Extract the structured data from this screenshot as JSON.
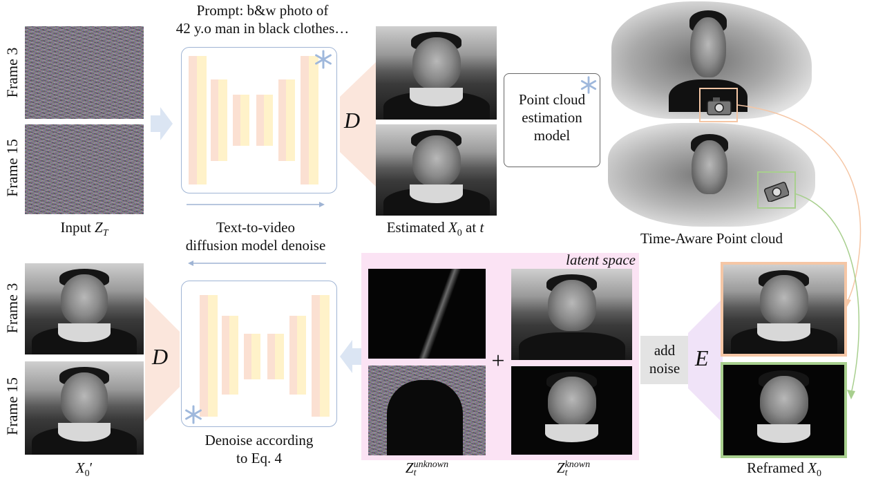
{
  "top": {
    "prompt_line1": "Prompt: b&w photo of",
    "prompt_line2": "42 y.o man in black clothes…",
    "frame3_label": "Frame 3",
    "frame15_label": "Frame 15",
    "input_prefix": "Input ",
    "input_var": "Z",
    "input_sub": "T",
    "decoder_letter": "D",
    "estimated_prefix": "Estimated ",
    "estimated_var": "X",
    "estimated_sub": "0",
    "estimated_suffix": " at ",
    "estimated_t": "t",
    "pc_line1": "Point cloud",
    "pc_line2": "estimation",
    "pc_line3": "model",
    "time_aware_label": "Time-Aware Point cloud",
    "t2v_line1": "Text-to-video",
    "t2v_line2": "diffusion model denoise"
  },
  "bottom": {
    "frame3_label": "Frame 3",
    "frame15_label": "Frame 15",
    "decoder_letter": "D",
    "output_var": "X",
    "output_sub": "0",
    "output_prime": "′",
    "denoise_line1": "Denoise according",
    "denoise_line2": "to Eq. 4",
    "latent_space_label": "latent space",
    "plus_sign": "+",
    "z_unknown_var": "Z",
    "z_unknown_sub": "t",
    "z_unknown_sup": "unknown",
    "z_known_var": "Z",
    "z_known_sub": "t",
    "z_known_sup": "known",
    "add_noise_line1": "add",
    "add_noise_line2": "noise",
    "encoder_letter": "E",
    "reframed_prefix": "Reframed ",
    "reframed_var": "X",
    "reframed_sub": "0"
  },
  "colors": {
    "arrow_blue": "#dbe5f3",
    "unet_border": "#9fb4d4",
    "orange_frame": "#f5c6a5",
    "green_frame": "#a8cf8e",
    "latent_bg": "#fbe3f4",
    "trapezoid": "#fbe6dc",
    "trapezoid_e": "#f0e3f8"
  },
  "icons": [
    "snowflake-icon",
    "camera-icon"
  ]
}
